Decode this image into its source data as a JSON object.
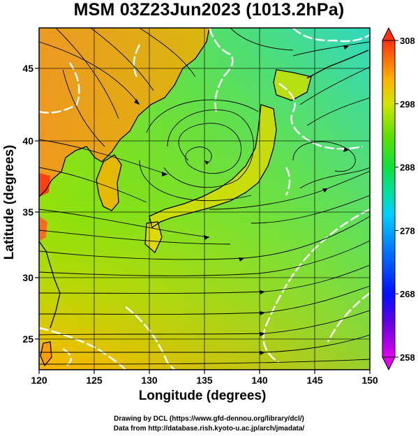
{
  "title": "MSM 03Z23Jun2023 (1013.2hPa)",
  "x_axis": {
    "label": "Longitude (degrees)",
    "range": [
      120,
      150
    ],
    "ticks": [
      "120",
      "125",
      "130",
      "135",
      "140",
      "145",
      "150"
    ]
  },
  "y_axis": {
    "label": "Latitude  (degrees)",
    "range": [
      22.4,
      47.6
    ],
    "ticks": [
      "25",
      "30",
      "35",
      "40",
      "45"
    ]
  },
  "colorbar": {
    "range": [
      258,
      308
    ],
    "ticks": [
      "308",
      "298",
      "288",
      "278",
      "268",
      "258"
    ],
    "colors": [
      "#d900ff",
      "#4a00e0",
      "#0040ff",
      "#00b4ff",
      "#00e0c8",
      "#18e060",
      "#74e000",
      "#dce000",
      "#ffb000",
      "#ff5a1a"
    ]
  },
  "map": {
    "field_colors": {
      "cool": "#2fd9a0",
      "mid": "#72e000",
      "warm": "#e6e600",
      "hot": "#ff9420"
    },
    "contour_color": "#ffffff",
    "streamline_color": "#000000",
    "coast_color": "#000000"
  },
  "credits": {
    "line1": "Drawing by DCL (https://www.gfd-dennou.org/library/dcl/)",
    "line2": "Data from http://database.rish.kyoto-u.ac.jp/arch/jmadata/"
  }
}
